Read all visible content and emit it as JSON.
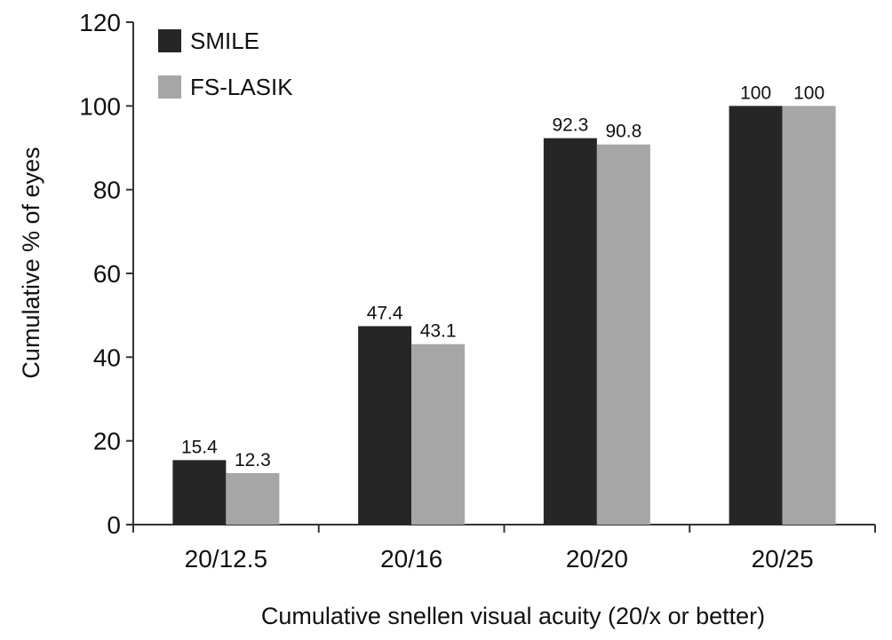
{
  "chart_data": {
    "type": "bar",
    "categories": [
      "20/12.5",
      "20/16",
      "20/20",
      "20/25"
    ],
    "series": [
      {
        "name": "SMILE",
        "values": [
          15.4,
          47.4,
          92.3,
          100
        ],
        "labels": [
          "15.4",
          "47.4",
          "92.3",
          "100"
        ],
        "color": "#262626"
      },
      {
        "name": "FS-LASIK",
        "values": [
          12.3,
          43.1,
          90.8,
          100
        ],
        "labels": [
          "12.3",
          "43.1",
          "90.8",
          "100"
        ],
        "color": "#a6a6a6"
      }
    ],
    "title": "",
    "xlabel": "Cumulative snellen visual acuity (20/x or better)",
    "ylabel": "Cumulative % of eyes",
    "ylim": [
      0,
      120
    ],
    "yticks": [
      "0",
      "20",
      "40",
      "60",
      "80",
      "100",
      "120"
    ],
    "grid": false,
    "legend_position": "top-left"
  }
}
